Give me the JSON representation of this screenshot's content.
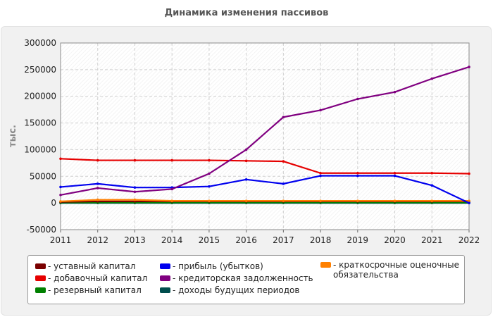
{
  "title": "Динамика изменения пассивов",
  "chart_data": {
    "type": "line",
    "title": "Динамика изменения пассивов",
    "xlabel": "",
    "ylabel": "тыс.",
    "x": [
      2011,
      2012,
      2013,
      2014,
      2015,
      2016,
      2017,
      2018,
      2019,
      2020,
      2021,
      2022
    ],
    "ylim": [
      -50000,
      300000
    ],
    "yticks": [
      -50000,
      0,
      50000,
      100000,
      150000,
      200000,
      250000,
      300000
    ],
    "grid": true,
    "legend_position": "bottom",
    "series": [
      {
        "name": "- уставный капитал",
        "color": "#7a0000",
        "values": [
          2000,
          3000,
          3000,
          3000,
          3000,
          3000,
          3000,
          3000,
          3000,
          3000,
          3000,
          3000
        ]
      },
      {
        "name": "- добавочный капитал",
        "color": "#e60000",
        "values": [
          83000,
          80000,
          80000,
          80000,
          80000,
          79000,
          78000,
          56000,
          56000,
          56000,
          56000,
          55000
        ]
      },
      {
        "name": "- резервный капитал",
        "color": "#008000",
        "values": [
          1000,
          1000,
          1000,
          1000,
          1000,
          1000,
          1000,
          1000,
          1000,
          1000,
          1000,
          1000
        ]
      },
      {
        "name": "- прибыль (убытков)",
        "color": "#0000ee",
        "values": [
          30000,
          36000,
          29000,
          29000,
          31000,
          44000,
          36000,
          51000,
          51000,
          51000,
          33000,
          0
        ]
      },
      {
        "name": "- кредиторская задолженность",
        "color": "#800080",
        "values": [
          15000,
          28000,
          21000,
          26000,
          55000,
          100000,
          161000,
          174000,
          195000,
          208000,
          233000,
          255000
        ]
      },
      {
        "name": "- доходы будущих периодов",
        "color": "#004d4d",
        "values": [
          0,
          0,
          0,
          0,
          0,
          0,
          0,
          0,
          0,
          0,
          0,
          0
        ]
      },
      {
        "name": "- краткосрочные оценочные обязательства",
        "color": "#ff8000",
        "values": [
          3000,
          6000,
          6000,
          4000,
          4000,
          4000,
          4000,
          4000,
          4000,
          4000,
          4000,
          4000
        ]
      }
    ]
  }
}
